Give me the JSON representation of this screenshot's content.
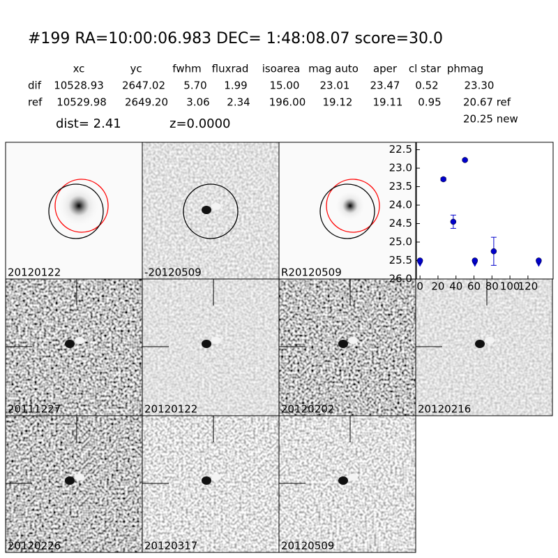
{
  "header": {
    "title": "#199   RA=10:00:06.983 DEC= 1:48:08.07       score=30.0"
  },
  "table": {
    "columns": [
      "xc",
      "yc",
      "fwhm",
      "fluxrad",
      "isoarea",
      "mag auto",
      "aper",
      "cl star",
      "phmag"
    ],
    "rows": [
      [
        "dif",
        "10528.93",
        "2647.02",
        "5.70",
        "1.99",
        "15.00",
        "23.01",
        "23.47",
        "0.52",
        "23.30"
      ],
      [
        "ref",
        "10529.98",
        "2649.20",
        "3.06",
        "2.34",
        "196.00",
        "19.12",
        "19.11",
        "0.95",
        "20.67 ref"
      ]
    ],
    "extra": "20.25 new",
    "dist": "dist=  2.41",
    "z": "z=0.0000"
  },
  "stamps": [
    "20120122",
    "-20120509",
    "R20120509",
    "20111227",
    "20120122",
    "20120202",
    "20120216",
    "20120226",
    "20120317",
    "20120509"
  ],
  "chart_data": {
    "type": "scatter",
    "color": "#0000cc",
    "x": [
      0,
      26,
      37,
      50,
      61,
      82,
      132
    ],
    "values": [
      25.5,
      23.3,
      24.45,
      22.78,
      25.5,
      25.25,
      25.5
    ],
    "errors": [
      null,
      0.04,
      0.18,
      0.03,
      null,
      0.38,
      null
    ],
    "limits": [
      true,
      false,
      false,
      false,
      true,
      false,
      true
    ],
    "xlim": [
      -4,
      148
    ],
    "xticks": [
      0,
      20,
      40,
      60,
      80,
      100,
      120
    ],
    "ylim": [
      22.3,
      26.0
    ],
    "y_inverted": true,
    "yticks": [
      22.5,
      {
        "value": 23,
        "label": "23.0"
      },
      23.5,
      {
        "value": 24,
        "label": "24.0"
      },
      24.5,
      {
        "value": 25,
        "label": "25.0"
      },
      25.5,
      {
        "value": 26,
        "label": "26.0"
      }
    ]
  }
}
